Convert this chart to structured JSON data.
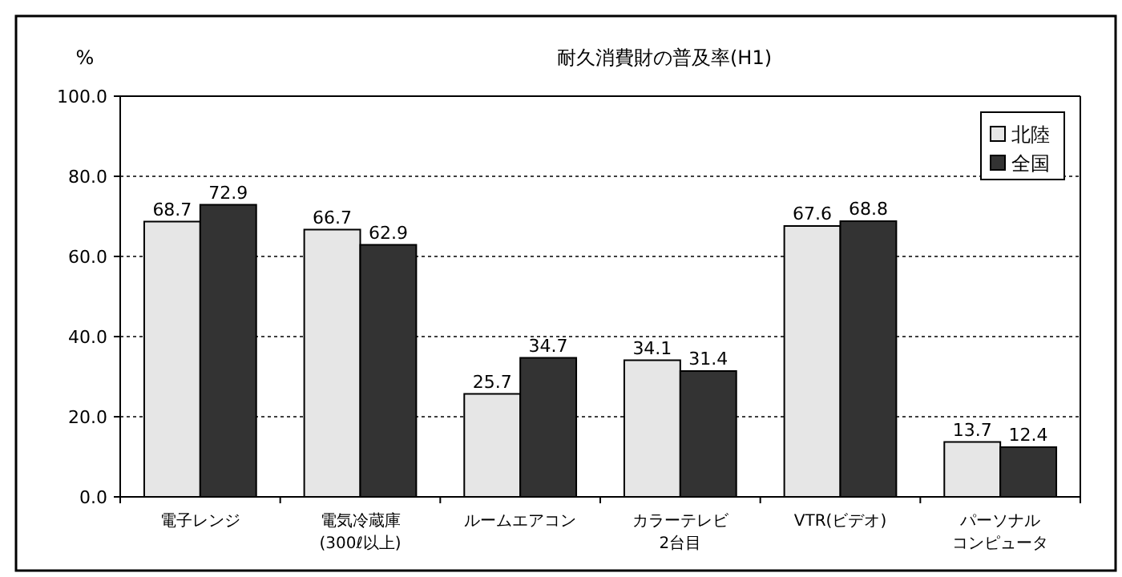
{
  "chart_data": {
    "type": "bar",
    "title": "耐久消費財の普及率(H1)",
    "ylabel": "%",
    "categories": [
      "電子レンジ",
      "電気冷蔵庫\n(300ℓ以上)",
      "ルームエアコン",
      "カラーテレビ\n2台目",
      "VTR(ビデオ)",
      "パーソナルコンピュータ"
    ],
    "series": [
      {
        "name": "北陸",
        "color": "#e6e6e6",
        "values": [
          68.7,
          66.7,
          25.7,
          34.1,
          67.6,
          13.7
        ]
      },
      {
        "name": "全国",
        "color": "#333333",
        "values": [
          72.9,
          62.9,
          34.7,
          31.4,
          68.8,
          12.4
        ]
      }
    ],
    "ylim": [
      0,
      100
    ],
    "yticks": [
      {
        "value": 0,
        "label": "0.0"
      },
      {
        "value": 20,
        "label": "20.0"
      },
      {
        "value": 40,
        "label": "40.0"
      },
      {
        "value": 60,
        "label": "60.0"
      },
      {
        "value": 80,
        "label": "80.0"
      },
      {
        "value": 100,
        "label": "100.0"
      }
    ],
    "grid": "y",
    "legend": "top right",
    "data_labels": true
  }
}
